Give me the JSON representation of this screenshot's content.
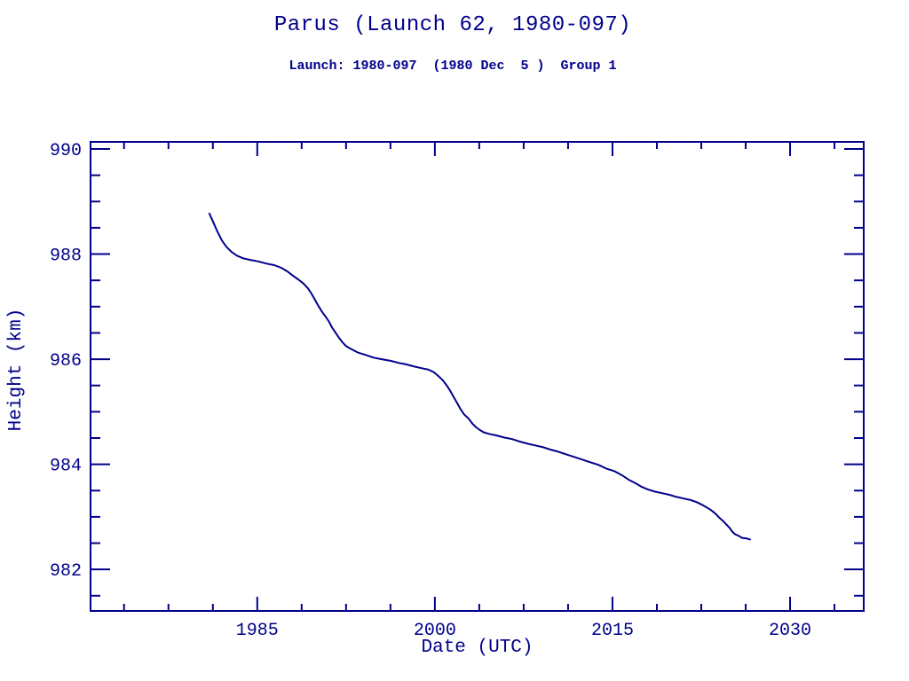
{
  "page": {
    "background": "#ffffff",
    "accent_color": "#00008B"
  },
  "header": {
    "title": "Parus (Launch 62, 1980-097)",
    "subtitle": "Launch: 1980-097  (1980 Dec  5 )  Group 1"
  },
  "chart_data": {
    "type": "line",
    "title": "Parus (Launch 62, 1980-097)",
    "subtitle": "Launch: 1980-097  (1980 Dec  5 )  Group 1",
    "xlabel": "Date (UTC)",
    "ylabel": "Height (km)",
    "xlim": [
      1970.92,
      2036.22
    ],
    "ylim": [
      981.21,
      990.135
    ],
    "x_major_ticks": [
      1985,
      2000,
      2015,
      2030
    ],
    "x_tick_labels": [
      "1985",
      "2000",
      "2015",
      "2030"
    ],
    "x_minor_interval": 3.75,
    "y_major_ticks": [
      982,
      984,
      986,
      988,
      990
    ],
    "y_tick_labels": [
      "982",
      "984",
      "986",
      "988",
      "990"
    ],
    "y_minor_interval": 0.5,
    "grid": false,
    "legend": null,
    "line_color": "#00008B",
    "series": [
      {
        "name": "orbital-height",
        "points": [
          [
            1980.96,
            988.77
          ],
          [
            1981.26,
            988.62
          ],
          [
            1981.63,
            988.43
          ],
          [
            1982.01,
            988.26
          ],
          [
            1982.38,
            988.14
          ],
          [
            1982.83,
            988.04
          ],
          [
            1983.28,
            987.97
          ],
          [
            1983.81,
            987.92
          ],
          [
            1984.41,
            987.89
          ],
          [
            1985.08,
            987.86
          ],
          [
            1985.75,
            987.82
          ],
          [
            1986.43,
            987.79
          ],
          [
            1987.03,
            987.74
          ],
          [
            1987.55,
            987.67
          ],
          [
            1988.0,
            987.59
          ],
          [
            1988.45,
            987.52
          ],
          [
            1988.9,
            987.44
          ],
          [
            1989.27,
            987.35
          ],
          [
            1989.57,
            987.25
          ],
          [
            1989.87,
            987.13
          ],
          [
            1990.17,
            987.01
          ],
          [
            1990.47,
            986.9
          ],
          [
            1990.77,
            986.81
          ],
          [
            1991.07,
            986.71
          ],
          [
            1991.3,
            986.61
          ],
          [
            1991.6,
            986.51
          ],
          [
            1991.9,
            986.41
          ],
          [
            1992.2,
            986.32
          ],
          [
            1992.5,
            986.25
          ],
          [
            1992.87,
            986.2
          ],
          [
            1993.47,
            986.13
          ],
          [
            1994.15,
            986.08
          ],
          [
            1994.82,
            986.03
          ],
          [
            1995.5,
            986.0
          ],
          [
            1996.25,
            985.97
          ],
          [
            1996.92,
            985.93
          ],
          [
            1997.6,
            985.9
          ],
          [
            1998.27,
            985.86
          ],
          [
            1998.87,
            985.83
          ],
          [
            1999.47,
            985.8
          ],
          [
            1999.92,
            985.75
          ],
          [
            2000.3,
            985.68
          ],
          [
            2000.67,
            985.6
          ],
          [
            2000.97,
            985.51
          ],
          [
            2001.27,
            985.41
          ],
          [
            2001.57,
            985.29
          ],
          [
            2001.87,
            985.17
          ],
          [
            2002.17,
            985.05
          ],
          [
            2002.47,
            984.95
          ],
          [
            2002.85,
            984.87
          ],
          [
            2003.15,
            984.78
          ],
          [
            2003.45,
            984.71
          ],
          [
            2003.75,
            984.66
          ],
          [
            2004.12,
            984.61
          ],
          [
            2004.57,
            984.58
          ],
          [
            2005.17,
            984.55
          ],
          [
            2005.85,
            984.51
          ],
          [
            2006.52,
            984.48
          ],
          [
            2007.2,
            984.43
          ],
          [
            2007.87,
            984.39
          ],
          [
            2008.47,
            984.36
          ],
          [
            2009.07,
            984.33
          ],
          [
            2009.75,
            984.28
          ],
          [
            2010.42,
            984.24
          ],
          [
            2011.1,
            984.19
          ],
          [
            2011.77,
            984.14
          ],
          [
            2012.45,
            984.09
          ],
          [
            2013.12,
            984.04
          ],
          [
            2013.8,
            983.99
          ],
          [
            2014.47,
            983.92
          ],
          [
            2015.15,
            983.87
          ],
          [
            2015.82,
            983.79
          ],
          [
            2016.42,
            983.7
          ],
          [
            2016.95,
            983.64
          ],
          [
            2017.47,
            983.57
          ],
          [
            2018.0,
            983.52
          ],
          [
            2018.6,
            983.48
          ],
          [
            2019.2,
            983.45
          ],
          [
            2019.8,
            983.42
          ],
          [
            2020.4,
            983.38
          ],
          [
            2021.0,
            983.35
          ],
          [
            2021.6,
            983.32
          ],
          [
            2022.12,
            983.28
          ],
          [
            2022.57,
            983.23
          ],
          [
            2022.95,
            983.18
          ],
          [
            2023.32,
            983.13
          ],
          [
            2023.7,
            983.06
          ],
          [
            2024.0,
            982.99
          ],
          [
            2024.3,
            982.93
          ],
          [
            2024.6,
            982.86
          ],
          [
            2024.9,
            982.79
          ],
          [
            2025.12,
            982.72
          ],
          [
            2025.35,
            982.67
          ],
          [
            2025.65,
            982.64
          ],
          [
            2025.95,
            982.6
          ],
          [
            2026.32,
            982.59
          ],
          [
            2026.62,
            982.57
          ]
        ]
      }
    ]
  }
}
